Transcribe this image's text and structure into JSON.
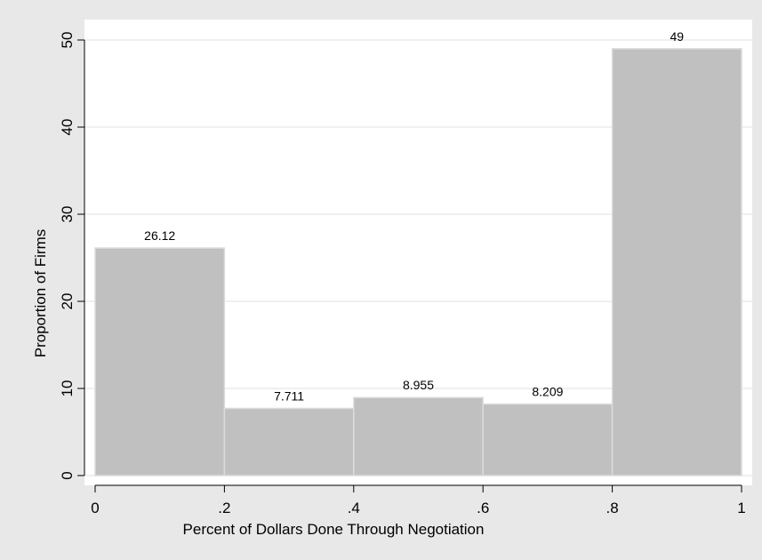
{
  "chart_data": {
    "type": "bar",
    "title": "",
    "xlabel": "Percent of Dollars Done Through Negotiation",
    "ylabel": "Proportion of Firms",
    "xlim": [
      0,
      1
    ],
    "ylim": [
      0,
      50
    ],
    "grid": true,
    "legend": "none",
    "bins": [
      {
        "x0": 0.0,
        "x1": 0.2,
        "value": 26.12,
        "label": "26.12"
      },
      {
        "x0": 0.2,
        "x1": 0.4,
        "value": 7.711,
        "label": "7.711"
      },
      {
        "x0": 0.4,
        "x1": 0.6,
        "value": 8.955,
        "label": "8.955"
      },
      {
        "x0": 0.6,
        "x1": 0.8,
        "value": 8.209,
        "label": "8.209"
      },
      {
        "x0": 0.8,
        "x1": 1.0,
        "value": 49,
        "label": "49"
      }
    ],
    "xticks": [
      {
        "value": 0,
        "label": "0"
      },
      {
        "value": 0.2,
        "label": ".2"
      },
      {
        "value": 0.4,
        "label": ".4"
      },
      {
        "value": 0.6,
        "label": ".6"
      },
      {
        "value": 0.8,
        "label": ".8"
      },
      {
        "value": 1,
        "label": "1"
      }
    ],
    "yticks": [
      {
        "value": 0,
        "label": "0"
      },
      {
        "value": 10,
        "label": "10"
      },
      {
        "value": 20,
        "label": "20"
      },
      {
        "value": 30,
        "label": "30"
      },
      {
        "value": 40,
        "label": "40"
      },
      {
        "value": 50,
        "label": "50"
      }
    ],
    "colors": {
      "background": "#e8e8e8",
      "plot_area": "#ffffff",
      "bar_fill": "#c0c0c0",
      "bar_edge": "#dcdcdc",
      "grid": "#e6e6e6",
      "axis": "#000000"
    }
  }
}
